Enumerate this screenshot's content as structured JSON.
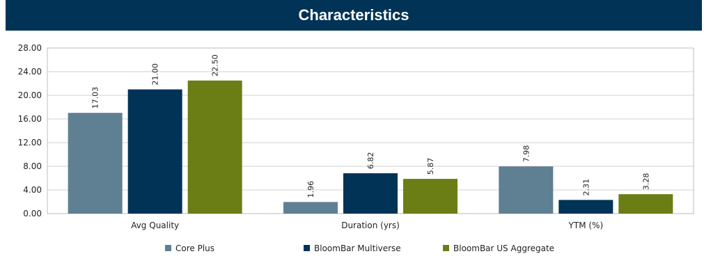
{
  "header": {
    "title": "Characteristics"
  },
  "chart_data": {
    "type": "bar",
    "title": "Characteristics",
    "categories": [
      "Avg Quality",
      "Duration (yrs)",
      "YTM (%)"
    ],
    "series": [
      {
        "name": "Core Plus",
        "color": "#5f7f93",
        "values": [
          17.03,
          1.96,
          7.98
        ]
      },
      {
        "name": "BloomBar Multiverse",
        "color": "#003356",
        "values": [
          21.0,
          6.82,
          2.31
        ]
      },
      {
        "name": "BloomBar US Aggregate",
        "color": "#6b7d15",
        "values": [
          22.5,
          5.87,
          3.28
        ]
      }
    ],
    "ylim": [
      0,
      28
    ],
    "yticks": [
      "0.00",
      "4.00",
      "8.00",
      "12.00",
      "16.00",
      "20.00",
      "24.00",
      "28.00"
    ],
    "grid": true,
    "legend": "bottom",
    "data_label_rotation": "vertical"
  }
}
